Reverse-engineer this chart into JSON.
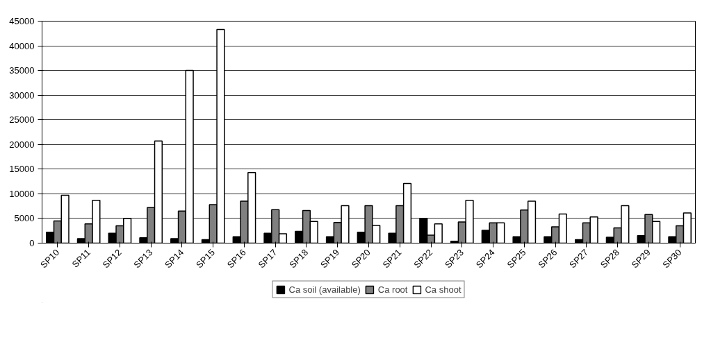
{
  "chart_data": {
    "type": "bar",
    "categories": [
      "SP10",
      "SP11",
      "SP12",
      "SP13",
      "SP14",
      "SP15",
      "SP16",
      "SP17",
      "SP18",
      "SP19",
      "SP20",
      "SP21",
      "SP22",
      "SP23",
      "SP24",
      "SP25",
      "SP26",
      "SP27",
      "SP28",
      "SP29",
      "SP30"
    ],
    "series": [
      {
        "name": "Ca soil (available)",
        "color": "#000000",
        "values": [
          2200,
          900,
          2000,
          1100,
          900,
          700,
          1300,
          2000,
          2400,
          1300,
          2200,
          2000,
          5000,
          400,
          2600,
          1300,
          1300,
          700,
          1200,
          1500,
          1300
        ]
      },
      {
        "name": "Ca root",
        "color": "#808080",
        "values": [
          4500,
          3900,
          3500,
          7200,
          6500,
          7800,
          8500,
          6800,
          6600,
          4200,
          7600,
          7600,
          1600,
          4300,
          4100,
          6700,
          3300,
          4100,
          3100,
          5800,
          3500
        ]
      },
      {
        "name": "Ca shoot",
        "color": "#ffffff",
        "values": [
          9700,
          8700,
          5000,
          20700,
          35000,
          43300,
          14300,
          1900,
          4400,
          7600,
          3600,
          12100,
          3900,
          8700,
          4100,
          8500,
          5900,
          5300,
          7600,
          4400,
          6100
        ]
      }
    ],
    "ylim": [
      0,
      45000
    ],
    "yticks": [
      0,
      5000,
      10000,
      15000,
      20000,
      25000,
      30000,
      35000,
      40000,
      45000
    ],
    "grid": "y",
    "legend": "bottom"
  }
}
